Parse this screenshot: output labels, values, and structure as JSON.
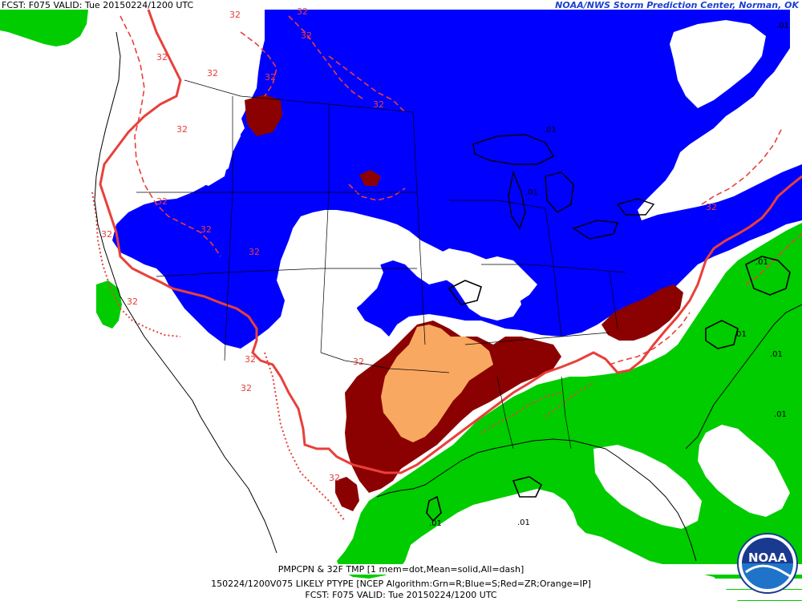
{
  "header": {
    "left": "FCST: F075  VALID: Tue  20150224/1200 UTC",
    "right": "NOAA/NWS Storm Prediction Center, Norman, OK"
  },
  "footer": {
    "line1": "PMPCPN & 32F TMP [1 mem=dot,Mean=solid,All=dash]",
    "line2": "150224/1200V075 LIKELY PTYPE [NCEP Algorithm:Grn=R;Blue=S;Red=ZR;Orange=IP]",
    "line3": "FCST: F075  VALID: Tue  20150224/1200 UTC"
  },
  "logo": {
    "text": "NOAA"
  },
  "contour_labels": {
    "freezing": "32",
    "precip": ".01"
  },
  "colors": {
    "rain": "#00cc00",
    "snow": "#0000ff",
    "freezing_rain": "#8b0000",
    "ice_pellets": "#f8a860",
    "contour_32": "#e8403a",
    "header_link": "#1d3fd1"
  }
}
